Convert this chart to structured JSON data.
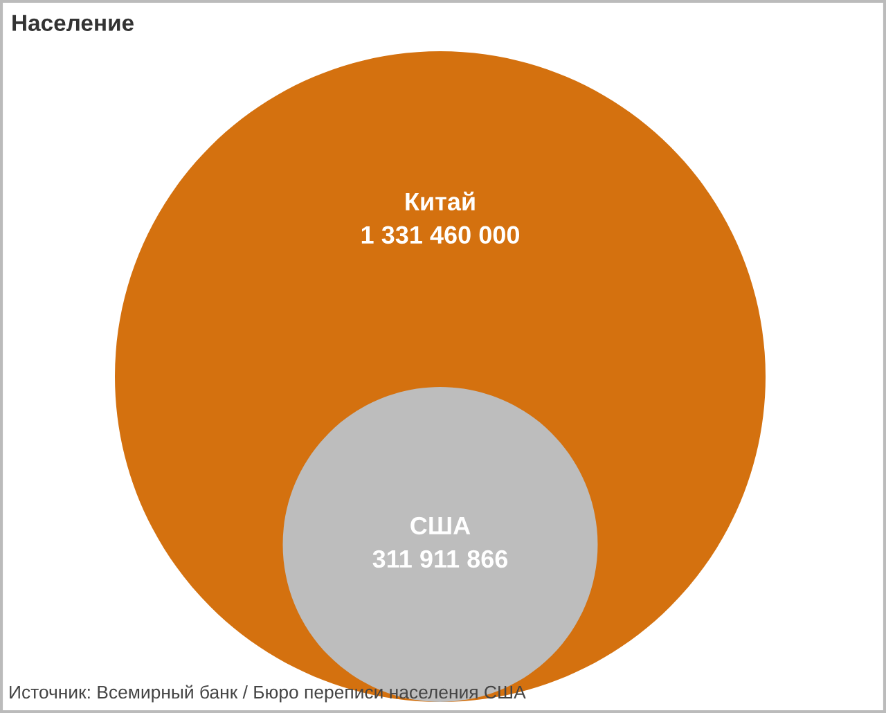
{
  "chart_data": {
    "type": "other",
    "title": "Население",
    "categories": [
      "Китай",
      "США"
    ],
    "values": [
      1331460000,
      311911866
    ],
    "value_labels": [
      "1 331 460 000",
      "311 911 866"
    ],
    "colors": [
      "#d4710f",
      "#bdbdbd"
    ],
    "annotations": [
      "Источник: Всемирный банк / Бюро переписи населения США"
    ]
  }
}
